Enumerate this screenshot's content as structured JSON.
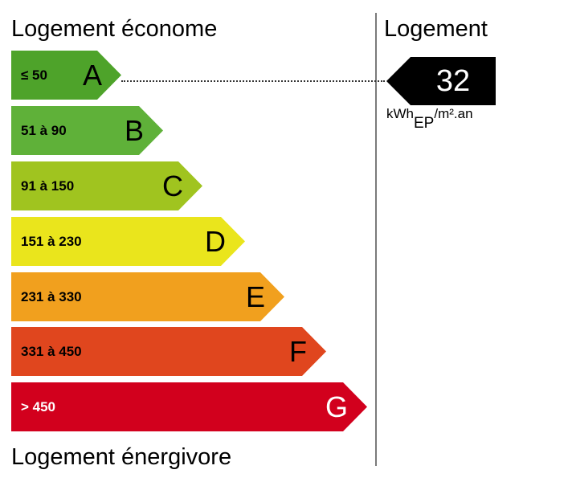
{
  "labels": {
    "top": "Logement économe",
    "bottom": "Logement énergivore",
    "right": "Logement"
  },
  "classes": [
    {
      "letter": "A",
      "range": "≤ 50",
      "color": "#4ea32a",
      "text_color": "#000000"
    },
    {
      "letter": "B",
      "range": "51 à 90",
      "color": "#5fb139",
      "text_color": "#000000"
    },
    {
      "letter": "C",
      "range": "91 à 150",
      "color": "#a0c41f",
      "text_color": "#000000"
    },
    {
      "letter": "D",
      "range": "151 à 230",
      "color": "#eae51c",
      "text_color": "#000000"
    },
    {
      "letter": "E",
      "range": "231 à 330",
      "color": "#f1a01e",
      "text_color": "#000000"
    },
    {
      "letter": "F",
      "range": "331 à 450",
      "color": "#e0461e",
      "text_color": "#000000"
    },
    {
      "letter": "G",
      "range": "> 450",
      "color": "#d2001d",
      "text_color": "#ffffff"
    }
  ],
  "indicator": {
    "value": "32",
    "class": "A",
    "unit_main": "kWh",
    "unit_sub": "EP",
    "unit_rest": "/m².an"
  }
}
